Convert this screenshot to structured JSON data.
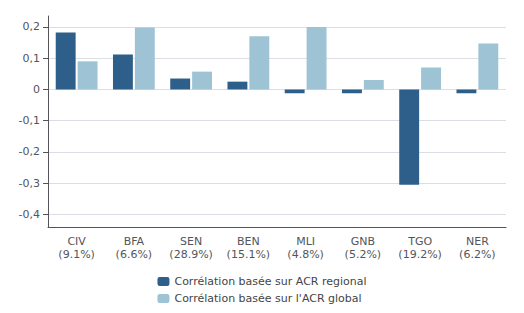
{
  "chart_data": {
    "type": "bar",
    "categories": [
      "CIV\n(9.1%)",
      "BFA\n(6.6%)",
      "SEN\n(28.9%)",
      "BEN\n(15.1%)",
      "MLI\n(4.8%)",
      "GNB\n(5.2%)",
      "TGO\n(19.2%)",
      "NER\n(6.2%)"
    ],
    "series": [
      {
        "name": "Corrélation basée sur ACR regional",
        "color": "#2E5F8A",
        "values": [
          0.182,
          0.112,
          0.035,
          0.025,
          -0.012,
          -0.012,
          -0.305,
          -0.012
        ]
      },
      {
        "name": "Corrélation basée sur l'ACR global",
        "color": "#9DC3D4",
        "values": [
          0.09,
          0.198,
          0.057,
          0.17,
          0.2,
          0.03,
          0.07,
          0.147
        ]
      }
    ],
    "ylim": [
      -0.44,
      0.235
    ],
    "yticks": [
      {
        "value": -0.4,
        "label": "-0,4"
      },
      {
        "value": -0.3,
        "label": "-0,3"
      },
      {
        "value": -0.2,
        "label": "-0,2"
      },
      {
        "value": -0.1,
        "label": "-0,1"
      },
      0,
      {
        "value": 0.1,
        "label": "0,1"
      },
      {
        "value": 0.2,
        "label": "0,2"
      }
    ],
    "grid": true,
    "legend": "bottom"
  }
}
